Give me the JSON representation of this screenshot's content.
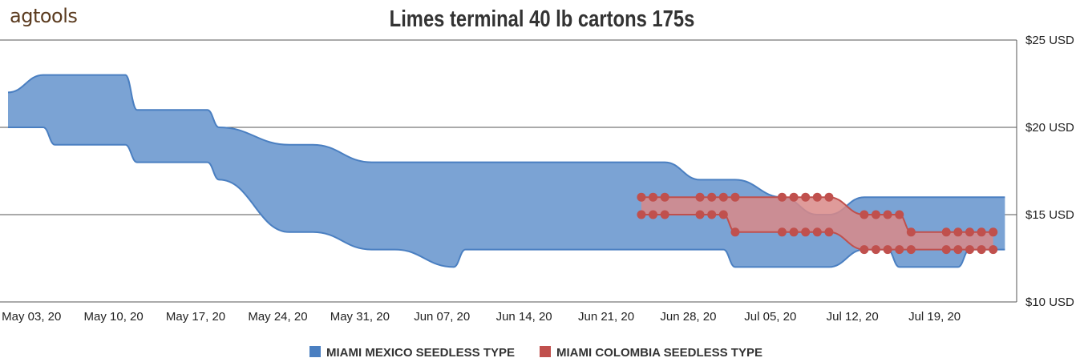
{
  "brand": {
    "logo_text": "agtools"
  },
  "chart_data": {
    "type": "area",
    "title": "Limes terminal  40 lb cartons 175s",
    "xlabel": "",
    "ylabel": "",
    "ylim": [
      10,
      25
    ],
    "xlim": [
      "2020-05-01",
      "2020-07-26"
    ],
    "y_ticks": [
      {
        "value": 25,
        "label": "$25 USD"
      },
      {
        "value": 20,
        "label": "$20 USD"
      },
      {
        "value": 15,
        "label": "$15 USD"
      },
      {
        "value": 10,
        "label": "$10 USD"
      }
    ],
    "x_ticks": [
      {
        "date": "2020-05-03",
        "label": "May 03, 20"
      },
      {
        "date": "2020-05-10",
        "label": "May 10, 20"
      },
      {
        "date": "2020-05-17",
        "label": "May 17, 20"
      },
      {
        "date": "2020-05-24",
        "label": "May 24, 20"
      },
      {
        "date": "2020-05-31",
        "label": "May 31, 20"
      },
      {
        "date": "2020-06-07",
        "label": "Jun 07, 20"
      },
      {
        "date": "2020-06-14",
        "label": "Jun 14, 20"
      },
      {
        "date": "2020-06-21",
        "label": "Jun 21, 20"
      },
      {
        "date": "2020-06-28",
        "label": "Jun 28, 20"
      },
      {
        "date": "2020-07-05",
        "label": "Jul 05, 20"
      },
      {
        "date": "2020-07-12",
        "label": "Jul 12, 20"
      },
      {
        "date": "2020-07-19",
        "label": "Jul 19, 20"
      }
    ],
    "grid": true,
    "legend_position": "bottom-center",
    "series": [
      {
        "name": "MIAMI MEXICO SEEDLESS TYPE",
        "color": "#4a7fc1",
        "fill_color": "#7ba3d4",
        "markers": false,
        "points": [
          {
            "x": "2020-05-01",
            "low": 20,
            "high": 22
          },
          {
            "x": "2020-05-04",
            "low": 20,
            "high": 23
          },
          {
            "x": "2020-05-05",
            "low": 19,
            "high": 23
          },
          {
            "x": "2020-05-11",
            "low": 19,
            "high": 23
          },
          {
            "x": "2020-05-12",
            "low": 18,
            "high": 21
          },
          {
            "x": "2020-05-18",
            "low": 18,
            "high": 21
          },
          {
            "x": "2020-05-19",
            "low": 17,
            "high": 20
          },
          {
            "x": "2020-05-25",
            "low": 14,
            "high": 19
          },
          {
            "x": "2020-05-27",
            "low": 14,
            "high": 19
          },
          {
            "x": "2020-06-01",
            "low": 13,
            "high": 18
          },
          {
            "x": "2020-06-03",
            "low": 13,
            "high": 18
          },
          {
            "x": "2020-06-08",
            "low": 12,
            "high": 18
          },
          {
            "x": "2020-06-09",
            "low": 13,
            "high": 18
          },
          {
            "x": "2020-06-26",
            "low": 13,
            "high": 18
          },
          {
            "x": "2020-06-29",
            "low": 13,
            "high": 17
          },
          {
            "x": "2020-07-01",
            "low": 13,
            "high": 17
          },
          {
            "x": "2020-07-02",
            "low": 12,
            "high": 17
          },
          {
            "x": "2020-07-06",
            "low": 12,
            "high": 16
          },
          {
            "x": "2020-07-09",
            "low": 12,
            "high": 15
          },
          {
            "x": "2020-07-10",
            "low": 12,
            "high": 15
          },
          {
            "x": "2020-07-13",
            "low": 13,
            "high": 16
          },
          {
            "x": "2020-07-15",
            "low": 13,
            "high": 16
          },
          {
            "x": "2020-07-16",
            "low": 12,
            "high": 16
          },
          {
            "x": "2020-07-21",
            "low": 12,
            "high": 16
          },
          {
            "x": "2020-07-22",
            "low": 13,
            "high": 16
          },
          {
            "x": "2020-07-25",
            "low": 13,
            "high": 16
          }
        ]
      },
      {
        "name": "MIAMI COLOMBIA SEEDLESS TYPE",
        "color": "#c0504d",
        "fill_color": "#d98a88",
        "markers": true,
        "points": [
          {
            "x": "2020-06-24",
            "low": 15,
            "high": 16
          },
          {
            "x": "2020-06-25",
            "low": 15,
            "high": 16
          },
          {
            "x": "2020-06-26",
            "low": 15,
            "high": 16
          },
          {
            "x": "2020-06-29",
            "low": 15,
            "high": 16
          },
          {
            "x": "2020-06-30",
            "low": 15,
            "high": 16
          },
          {
            "x": "2020-07-01",
            "low": 15,
            "high": 16
          },
          {
            "x": "2020-07-02",
            "low": 14,
            "high": 16
          },
          {
            "x": "2020-07-06",
            "low": 14,
            "high": 16
          },
          {
            "x": "2020-07-07",
            "low": 14,
            "high": 16
          },
          {
            "x": "2020-07-08",
            "low": 14,
            "high": 16
          },
          {
            "x": "2020-07-09",
            "low": 14,
            "high": 16
          },
          {
            "x": "2020-07-10",
            "low": 14,
            "high": 16
          },
          {
            "x": "2020-07-13",
            "low": 13,
            "high": 15
          },
          {
            "x": "2020-07-14",
            "low": 13,
            "high": 15
          },
          {
            "x": "2020-07-15",
            "low": 13,
            "high": 15
          },
          {
            "x": "2020-07-16",
            "low": 13,
            "high": 15
          },
          {
            "x": "2020-07-17",
            "low": 13,
            "high": 14
          },
          {
            "x": "2020-07-20",
            "low": 13,
            "high": 14
          },
          {
            "x": "2020-07-21",
            "low": 13,
            "high": 14
          },
          {
            "x": "2020-07-22",
            "low": 13,
            "high": 14
          },
          {
            "x": "2020-07-23",
            "low": 13,
            "high": 14
          },
          {
            "x": "2020-07-24",
            "low": 13,
            "high": 14
          }
        ]
      }
    ]
  }
}
